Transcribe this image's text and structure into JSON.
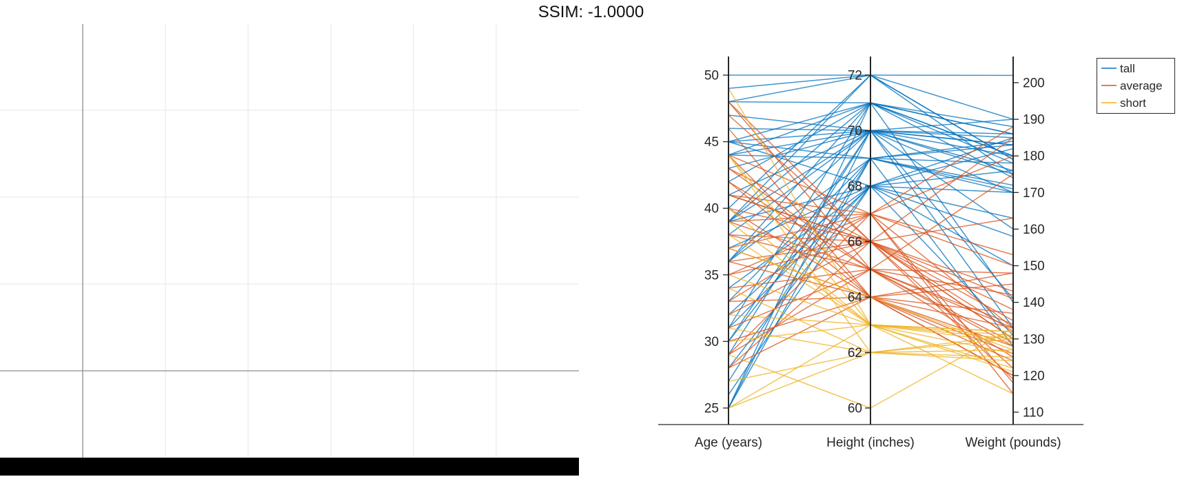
{
  "figure": {
    "title": "SSIM: -1.0000"
  },
  "chart_data": {
    "type": "parallel-coordinates",
    "axes": [
      {
        "name": "Age (years)",
        "ticks": [
          25,
          30,
          35,
          40,
          45,
          50
        ],
        "range": [
          25,
          50
        ]
      },
      {
        "name": "Height (inches)",
        "ticks": [
          60,
          62,
          64,
          66,
          68,
          70,
          72
        ],
        "range": [
          60,
          72
        ]
      },
      {
        "name": "Weight (pounds)",
        "ticks": [
          110,
          120,
          130,
          140,
          150,
          160,
          170,
          180,
          190,
          200
        ],
        "range": [
          108,
          206
        ]
      }
    ],
    "legend": {
      "position": "top-right",
      "entries": [
        "tall",
        "average",
        "short"
      ]
    },
    "colors": {
      "tall": "#0072BD",
      "average": "#D95319",
      "short": "#EDB120"
    },
    "grid": false,
    "series": [
      {
        "name": "tall",
        "color": "#0072BD",
        "records": [
          [
            50,
            72,
            202
          ],
          [
            49,
            72,
            190
          ],
          [
            48,
            71,
            180
          ],
          [
            48,
            72,
            175
          ],
          [
            47,
            70,
            185
          ],
          [
            45,
            71,
            186
          ],
          [
            45,
            69,
            183
          ],
          [
            45,
            68,
            176
          ],
          [
            44,
            71,
            188
          ],
          [
            44,
            69,
            178
          ],
          [
            44,
            70,
            183
          ],
          [
            39,
            72,
            179
          ],
          [
            39,
            71,
            186
          ],
          [
            39,
            70,
            176
          ],
          [
            39,
            68,
            163
          ],
          [
            38,
            70,
            186
          ],
          [
            36,
            70,
            183
          ],
          [
            36,
            71,
            180
          ],
          [
            33,
            69,
            170
          ],
          [
            32,
            68,
            158
          ],
          [
            31,
            71,
            174
          ],
          [
            30,
            69,
            171
          ],
          [
            30,
            70,
            141
          ],
          [
            29,
            70,
            175
          ],
          [
            28,
            68,
            131
          ],
          [
            27,
            69,
            184
          ],
          [
            26,
            68,
            170
          ],
          [
            25,
            70,
            180
          ],
          [
            25,
            71,
            178
          ],
          [
            25,
            69,
            172
          ],
          [
            43,
            70,
            160
          ],
          [
            42,
            71,
            140
          ],
          [
            46,
            70,
            133
          ],
          [
            41,
            70,
            190
          ],
          [
            37,
            68,
            150
          ],
          [
            36,
            69,
            128
          ],
          [
            40,
            72,
            179
          ],
          [
            34,
            68,
            182
          ],
          [
            45,
            70,
            170
          ],
          [
            31,
            68,
            185
          ]
        ]
      },
      {
        "name": "average",
        "color": "#D95319",
        "records": [
          [
            48,
            66,
            119
          ],
          [
            48,
            65,
            133
          ],
          [
            47,
            66,
            141
          ],
          [
            46,
            64,
            145
          ],
          [
            44,
            67,
            133
          ],
          [
            43,
            66,
            138
          ],
          [
            42,
            64,
            124
          ],
          [
            42,
            65,
            128
          ],
          [
            41,
            66,
            135
          ],
          [
            41,
            67,
            150
          ],
          [
            40,
            64,
            120
          ],
          [
            39,
            65,
            129
          ],
          [
            38,
            66,
            143
          ],
          [
            37,
            67,
            153
          ],
          [
            37,
            64,
            133
          ],
          [
            36,
            66,
            185
          ],
          [
            35,
            67,
            180
          ],
          [
            35,
            66,
            130
          ],
          [
            34,
            65,
            125
          ],
          [
            33,
            64,
            137
          ],
          [
            33,
            67,
            188
          ],
          [
            32,
            66,
            130
          ],
          [
            31,
            65,
            142
          ],
          [
            30,
            64,
            128
          ],
          [
            29,
            67,
            115
          ],
          [
            28,
            66,
            163
          ],
          [
            28,
            64,
            120
          ],
          [
            36,
            64,
            148
          ],
          [
            41,
            66,
            122
          ],
          [
            38,
            65,
            175
          ],
          [
            44,
            64,
            126
          ],
          [
            40,
            66,
            132
          ],
          [
            39,
            67,
            118
          ],
          [
            43,
            65,
            148
          ],
          [
            29,
            65,
            134
          ]
        ]
      },
      {
        "name": "short",
        "color": "#EDB120",
        "records": [
          [
            49,
            63,
            126
          ],
          [
            44,
            63,
            121
          ],
          [
            44,
            62,
            131
          ],
          [
            40,
            63,
            132
          ],
          [
            39,
            63,
            129
          ],
          [
            38,
            63,
            115
          ],
          [
            37,
            64,
            127
          ],
          [
            35,
            63,
            132
          ],
          [
            34,
            62,
            124
          ],
          [
            31,
            62,
            127
          ],
          [
            30,
            63,
            122
          ],
          [
            29,
            60,
            133
          ],
          [
            25,
            63,
            131
          ],
          [
            25,
            62,
            130
          ],
          [
            32,
            63,
            130
          ],
          [
            27,
            62,
            125
          ]
        ]
      }
    ]
  }
}
